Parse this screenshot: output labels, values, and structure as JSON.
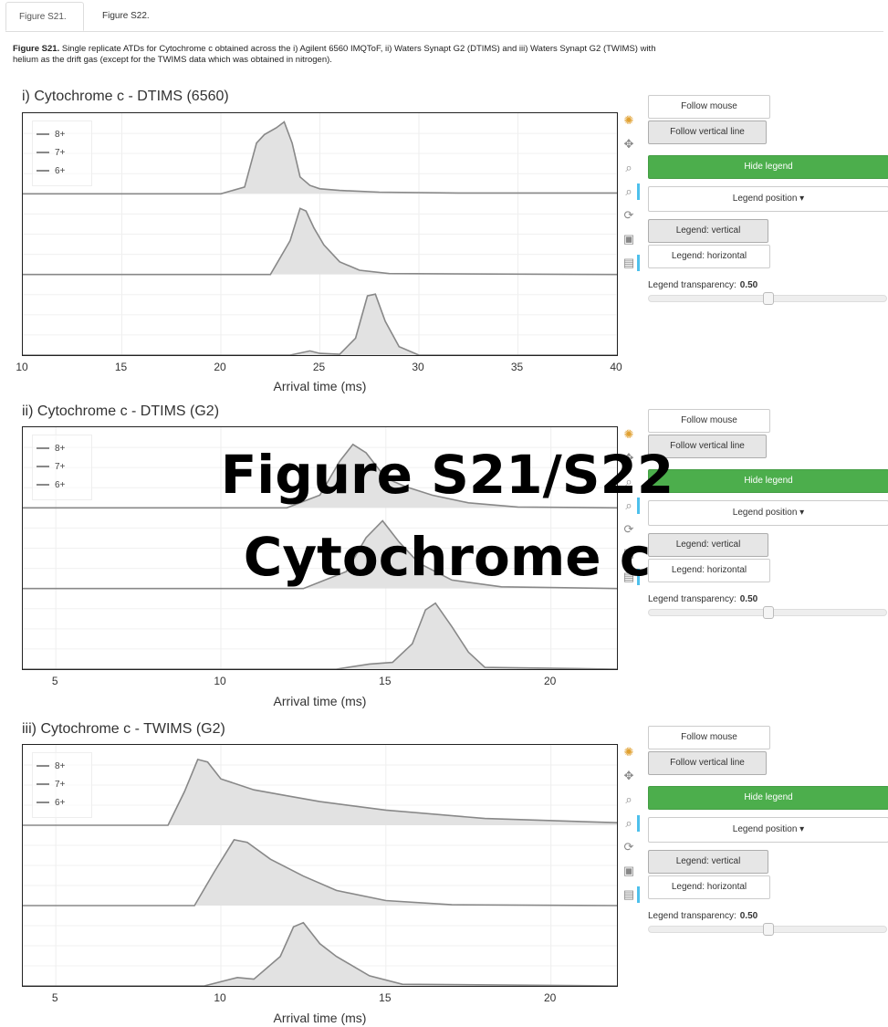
{
  "tabs": [
    {
      "label": "Figure S21.",
      "active": true
    },
    {
      "label": "Figure S22.",
      "active": false
    }
  ],
  "caption": {
    "bold": "Figure S21.",
    "text": " Single replicate ATDs for Cytochrome c obtained across the i) Agilent 6560 IMQToF, ii) Waters Synapt G2 (DTIMS) and iii) Waters Synapt G2 (TWIMS) with helium as the drift gas (except for the TWIMS data which was obtained in nitrogen)."
  },
  "overlay": {
    "line1": "Figure S21/S22",
    "line2": "Cytochrome c"
  },
  "controls": {
    "follow_mouse": "Follow mouse",
    "follow_vertical": "Follow vertical line",
    "hide_legend": "Hide legend",
    "legend_position": "Legend position",
    "legend_vertical": "Legend: vertical",
    "legend_horizontal": "Legend: horizontal",
    "transparency_label": "Legend transparency:",
    "transparency_value": "0.50",
    "transparency": 0.5
  },
  "colors": {
    "accent_green": "#4cae4c",
    "fill": "#e2e2e2",
    "stroke": "#888888",
    "toolbar_active": "#4ec0ec"
  },
  "icons": [
    "bokeh-logo-icon",
    "pan-icon",
    "box-zoom-icon",
    "wheel-zoom-icon",
    "reset-icon",
    "save-icon",
    "hover-icon"
  ],
  "chart_data": [
    {
      "type": "area",
      "title": "i) Cytochrome c - DTIMS (6560)",
      "xlabel": "Arrival time (ms)",
      "xlim": [
        10,
        40
      ],
      "xticks": [
        10,
        15,
        20,
        25,
        30,
        35,
        40
      ],
      "legend": [
        "8+",
        "7+",
        "6+"
      ],
      "legend_position": "top-left",
      "series": [
        {
          "name": "8+",
          "x": [
            10,
            20,
            21.2,
            21.8,
            22.2,
            22.8,
            23.2,
            23.6,
            24,
            24.5,
            25,
            26,
            28,
            32,
            40
          ],
          "y": [
            0,
            0,
            0.08,
            0.6,
            0.7,
            0.78,
            0.85,
            0.6,
            0.2,
            0.1,
            0.06,
            0.04,
            0.02,
            0.01,
            0.01
          ]
        },
        {
          "name": "7+",
          "x": [
            10,
            22.5,
            23.5,
            24,
            24.3,
            24.7,
            25.2,
            26,
            27,
            28.5,
            40
          ],
          "y": [
            0,
            0,
            0.4,
            0.78,
            0.75,
            0.55,
            0.35,
            0.15,
            0.05,
            0.01,
            0
          ]
        },
        {
          "name": "6+",
          "x": [
            10,
            23.5,
            24.5,
            25,
            26,
            26.8,
            27.4,
            27.8,
            28.3,
            29,
            30,
            40
          ],
          "y": [
            0,
            0,
            0.05,
            0.02,
            0.01,
            0.2,
            0.7,
            0.72,
            0.4,
            0.1,
            0,
            0
          ]
        }
      ]
    },
    {
      "type": "area",
      "title": "ii) Cytochrome c - DTIMS (G2)",
      "xlabel": "Arrival time (ms)",
      "xlim": [
        4,
        22
      ],
      "xticks": [
        5,
        10,
        15,
        20
      ],
      "legend": [
        "8+",
        "7+",
        "6+"
      ],
      "legend_position": "top-left",
      "series": [
        {
          "name": "8+",
          "x": [
            4,
            12,
            13,
            13.6,
            14,
            14.4,
            15,
            15.6,
            16.4,
            17.5,
            19,
            22
          ],
          "y": [
            0,
            0,
            0.15,
            0.55,
            0.75,
            0.65,
            0.35,
            0.25,
            0.15,
            0.06,
            0.01,
            0
          ]
        },
        {
          "name": "7+",
          "x": [
            4,
            12.5,
            13.8,
            14.4,
            14.9,
            15.4,
            16,
            17,
            18.5,
            22
          ],
          "y": [
            0,
            0,
            0.2,
            0.6,
            0.8,
            0.55,
            0.3,
            0.1,
            0.02,
            0
          ]
        },
        {
          "name": "6+",
          "x": [
            4,
            13.5,
            14.5,
            15.2,
            15.8,
            16.2,
            16.5,
            17,
            17.5,
            18,
            22
          ],
          "y": [
            0,
            0,
            0.06,
            0.08,
            0.3,
            0.7,
            0.78,
            0.5,
            0.2,
            0.02,
            0
          ]
        }
      ]
    },
    {
      "type": "area",
      "title": "iii) Cytochrome c - TWIMS (G2)",
      "xlabel": "Arrival time (ms)",
      "xlim": [
        4,
        22
      ],
      "xticks": [
        5,
        10,
        15,
        20
      ],
      "legend": [
        "8+",
        "7+",
        "6+"
      ],
      "legend_position": "top-left",
      "series": [
        {
          "name": "8+",
          "x": [
            4,
            8.4,
            8.9,
            9.3,
            9.6,
            10,
            11,
            12,
            13,
            15,
            18,
            22
          ],
          "y": [
            0,
            0,
            0.4,
            0.78,
            0.75,
            0.55,
            0.42,
            0.35,
            0.28,
            0.18,
            0.08,
            0.03
          ]
        },
        {
          "name": "7+",
          "x": [
            4,
            9.2,
            9.8,
            10.4,
            10.8,
            11.5,
            12.5,
            13.5,
            15,
            17,
            22
          ],
          "y": [
            0,
            0,
            0.4,
            0.78,
            0.75,
            0.55,
            0.35,
            0.18,
            0.06,
            0.01,
            0
          ]
        },
        {
          "name": "6+",
          "x": [
            4,
            9.5,
            10.5,
            11,
            11.8,
            12.2,
            12.5,
            13,
            13.5,
            14.5,
            15.5,
            22
          ],
          "y": [
            0,
            0,
            0.1,
            0.08,
            0.35,
            0.7,
            0.75,
            0.5,
            0.35,
            0.12,
            0.02,
            0
          ]
        }
      ]
    }
  ]
}
